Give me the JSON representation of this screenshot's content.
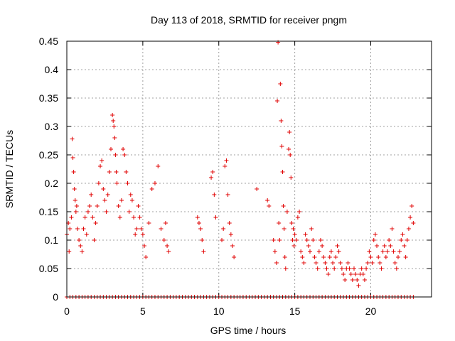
{
  "chart_data": {
    "type": "scatter",
    "title": "Day 113 of 2018, SRMTID for receiver pngm",
    "xlabel": "GPS time / hours",
    "ylabel": "SRMTID / TECUs",
    "xlim": [
      0,
      24
    ],
    "ylim": [
      0,
      0.45
    ],
    "grid": true,
    "marker": "+",
    "series_color": "#e00000",
    "x_ticks": [
      0,
      5,
      10,
      15,
      20
    ],
    "x_tick_labels": [
      "0",
      "5",
      "10",
      "15",
      "20"
    ],
    "y_ticks": [
      0,
      0.05,
      0.1,
      0.15,
      0.2,
      0.25,
      0.3,
      0.35,
      0.4,
      0.45
    ],
    "y_tick_labels": [
      "0",
      "0.05",
      "0.1",
      "0.15",
      "0.2",
      "0.25",
      "0.3",
      "0.35",
      "0.4",
      "0.45"
    ],
    "series": [
      {
        "name": "SRMTID",
        "x": [
          0.0,
          0.1,
          0.15,
          0.2,
          0.3,
          0.35,
          0.4,
          0.45,
          0.5,
          0.55,
          0.6,
          0.65,
          0.7,
          0.8,
          0.9,
          1.0,
          1.1,
          1.2,
          1.3,
          1.4,
          1.5,
          1.6,
          1.7,
          1.8,
          1.9,
          2.0,
          2.1,
          2.2,
          2.3,
          2.4,
          2.5,
          2.6,
          2.7,
          2.8,
          2.9,
          3.0,
          3.05,
          3.1,
          3.15,
          3.2,
          3.25,
          3.3,
          3.4,
          3.5,
          3.6,
          3.7,
          3.8,
          3.9,
          4.0,
          4.1,
          4.2,
          4.3,
          4.4,
          4.5,
          4.6,
          4.7,
          4.8,
          4.9,
          5.0,
          5.1,
          5.2,
          5.4,
          5.6,
          5.8,
          6.0,
          6.2,
          6.4,
          6.5,
          6.6,
          6.7,
          8.6,
          8.7,
          8.8,
          8.9,
          9.0,
          9.5,
          9.6,
          9.7,
          9.8,
          10.2,
          10.3,
          10.4,
          10.5,
          10.6,
          10.7,
          10.8,
          10.9,
          11.0,
          12.5,
          13.2,
          13.3,
          13.6,
          13.7,
          13.8,
          13.85,
          13.9,
          13.95,
          14.0,
          14.05,
          14.1,
          14.15,
          14.2,
          14.25,
          14.3,
          14.35,
          14.4,
          14.5,
          14.6,
          14.65,
          14.7,
          14.75,
          14.8,
          14.85,
          14.9,
          14.95,
          15.0,
          15.1,
          15.2,
          15.3,
          15.4,
          15.5,
          15.6,
          15.7,
          15.8,
          15.9,
          16.0,
          16.1,
          16.2,
          16.3,
          16.4,
          16.5,
          16.6,
          16.7,
          16.8,
          16.9,
          17.0,
          17.1,
          17.2,
          17.3,
          17.4,
          17.5,
          17.6,
          17.7,
          17.8,
          17.9,
          18.0,
          18.1,
          18.2,
          18.3,
          18.4,
          18.5,
          18.6,
          18.7,
          18.8,
          18.9,
          19.0,
          19.1,
          19.2,
          19.3,
          19.4,
          19.5,
          19.6,
          19.7,
          19.8,
          19.9,
          20.0,
          20.1,
          20.2,
          20.3,
          20.4,
          20.5,
          20.6,
          20.7,
          20.8,
          20.9,
          21.0,
          21.1,
          21.2,
          21.3,
          21.4,
          21.5,
          21.6,
          21.7,
          21.8,
          21.9,
          22.0,
          22.1,
          22.2,
          22.3,
          22.4,
          22.5,
          22.6,
          22.7,
          22.8
        ],
        "y": [
          0.11,
          0.13,
          0.08,
          0.12,
          0.14,
          0.278,
          0.245,
          0.22,
          0.19,
          0.17,
          0.15,
          0.16,
          0.12,
          0.1,
          0.09,
          0.08,
          0.12,
          0.14,
          0.11,
          0.15,
          0.16,
          0.18,
          0.14,
          0.1,
          0.13,
          0.16,
          0.2,
          0.23,
          0.24,
          0.19,
          0.17,
          0.15,
          0.18,
          0.22,
          0.26,
          0.32,
          0.31,
          0.3,
          0.28,
          0.25,
          0.22,
          0.2,
          0.16,
          0.14,
          0.17,
          0.26,
          0.25,
          0.22,
          0.2,
          0.15,
          0.18,
          0.17,
          0.14,
          0.11,
          0.12,
          0.16,
          0.14,
          0.12,
          0.11,
          0.09,
          0.07,
          0.13,
          0.19,
          0.2,
          0.23,
          0.12,
          0.1,
          0.13,
          0.09,
          0.08,
          0.14,
          0.13,
          0.12,
          0.1,
          0.08,
          0.21,
          0.22,
          0.18,
          0.14,
          0.1,
          0.12,
          0.23,
          0.24,
          0.18,
          0.13,
          0.11,
          0.09,
          0.07,
          0.19,
          0.17,
          0.16,
          0.1,
          0.08,
          0.06,
          0.345,
          0.448,
          0.13,
          0.1,
          0.375,
          0.31,
          0.265,
          0.22,
          0.16,
          0.12,
          0.07,
          0.05,
          0.15,
          0.26,
          0.29,
          0.25,
          0.21,
          0.13,
          0.1,
          0.12,
          0.09,
          0.11,
          0.1,
          0.14,
          0.15,
          0.08,
          0.07,
          0.06,
          0.11,
          0.1,
          0.09,
          0.08,
          0.12,
          0.1,
          0.07,
          0.06,
          0.05,
          0.08,
          0.1,
          0.09,
          0.07,
          0.06,
          0.05,
          0.04,
          0.07,
          0.08,
          0.06,
          0.05,
          0.07,
          0.09,
          0.08,
          0.06,
          0.05,
          0.04,
          0.03,
          0.05,
          0.06,
          0.05,
          0.04,
          0.03,
          0.05,
          0.04,
          0.03,
          0.02,
          0.04,
          0.05,
          0.04,
          0.03,
          0.05,
          0.06,
          0.08,
          0.07,
          0.06,
          0.1,
          0.11,
          0.09,
          0.07,
          0.06,
          0.05,
          0.08,
          0.09,
          0.07,
          0.08,
          0.1,
          0.09,
          0.12,
          0.08,
          0.06,
          0.05,
          0.07,
          0.08,
          0.1,
          0.11,
          0.09,
          0.07,
          0.1,
          0.12,
          0.14,
          0.16,
          0.13
        ],
        "baseline_x": [
          0.0,
          0.2,
          0.4,
          0.6,
          0.8,
          1.0,
          1.2,
          1.4,
          1.6,
          1.8,
          2.0,
          2.2,
          2.4,
          2.6,
          2.8,
          3.0,
          3.2,
          3.4,
          3.6,
          3.8,
          4.0,
          4.2,
          4.4,
          4.6,
          4.8,
          5.0,
          5.2,
          5.4,
          5.6,
          5.8,
          6.0,
          6.2,
          6.4,
          6.6,
          6.8,
          7.0,
          7.2,
          7.4,
          7.6,
          7.8,
          8.0,
          8.2,
          8.4,
          8.6,
          8.8,
          9.0,
          9.2,
          9.4,
          9.6,
          9.8,
          10.0,
          10.2,
          10.4,
          10.6,
          10.8,
          11.0,
          11.2,
          11.4,
          11.6,
          11.8,
          12.0,
          12.2,
          12.4,
          12.6,
          12.8,
          13.0,
          13.2,
          13.4,
          13.6,
          13.8,
          14.0,
          14.2,
          14.4,
          14.6,
          14.8,
          15.0,
          15.2,
          15.4,
          15.6,
          15.8,
          16.0,
          16.2,
          16.4,
          16.6,
          16.8,
          17.0,
          17.2,
          17.4,
          17.6,
          17.8,
          18.0,
          18.2,
          18.4,
          18.6,
          18.8,
          19.0,
          19.2,
          19.4,
          19.6,
          19.8,
          20.0,
          20.2,
          20.4,
          20.6,
          20.8,
          21.0,
          21.2,
          21.4,
          21.6,
          21.8,
          22.0,
          22.2,
          22.4,
          22.6,
          22.8
        ],
        "baseline_y": 0
      }
    ]
  }
}
